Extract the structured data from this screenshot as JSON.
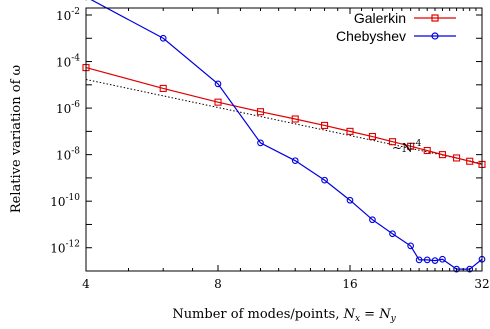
{
  "chart_data": {
    "type": "line",
    "title": "",
    "xlabel": "Number of modes/points, ",
    "xlabel_parts": [
      {
        "text": "Number of modes/points, ",
        "style": "normal"
      },
      {
        "text": "N",
        "style": "italic"
      },
      {
        "text": "x",
        "style": "sub-italic"
      },
      {
        "text": " = ",
        "style": "normal"
      },
      {
        "text": "N",
        "style": "italic"
      },
      {
        "text": "y",
        "style": "sub-italic"
      }
    ],
    "ylabel": "Relative variation of ω",
    "xscale": "log2",
    "yscale": "log10",
    "xlim": [
      4,
      32
    ],
    "ylim": [
      1e-13,
      0.02
    ],
    "xticks": [
      4,
      8,
      16,
      32
    ],
    "xtick_labels": [
      "4",
      "8",
      "16",
      "32"
    ],
    "yticks": [
      1e-12,
      1e-10,
      1e-08,
      1e-06,
      0.0001,
      0.01
    ],
    "ytick_labels": [
      {
        "base": "10",
        "exp": "-12"
      },
      {
        "base": "10",
        "exp": "-10"
      },
      {
        "base": "10",
        "exp": "-8"
      },
      {
        "base": "10",
        "exp": "-6"
      },
      {
        "base": "10",
        "exp": "-4"
      },
      {
        "base": "10",
        "exp": "-2"
      }
    ],
    "grid": false,
    "legend_position": "top-right",
    "series": [
      {
        "name": "Galerkin",
        "color": "#e00000",
        "marker": "square",
        "x": [
          4,
          6,
          8,
          10,
          12,
          14,
          16,
          18,
          20,
          22,
          24,
          26,
          28,
          30,
          32
        ],
        "y": [
          5.5e-05,
          7e-06,
          1.8e-06,
          7e-07,
          3.4e-07,
          1.8e-07,
          1e-07,
          6e-08,
          3.6e-08,
          2.3e-08,
          1.5e-08,
          1e-08,
          7.2e-09,
          5.2e-09,
          3.8e-09
        ]
      },
      {
        "name": "Chebyshev",
        "color": "#0000e0",
        "marker": "circle",
        "x": [
          4,
          6,
          8,
          10,
          12,
          14,
          16,
          18,
          20,
          22,
          23,
          24,
          25,
          26,
          28,
          30,
          32
        ],
        "y": [
          0.06,
          0.001,
          1.1e-05,
          3.2e-08,
          5.5e-09,
          8e-10,
          1.1e-10,
          1.6e-11,
          4e-12,
          1.2e-12,
          3e-13,
          3e-13,
          2.8e-13,
          3.2e-13,
          1.2e-13,
          1.2e-13,
          3.2e-13
        ]
      }
    ],
    "reference_line": {
      "label": "~N",
      "label_exp": "-4",
      "style": "dotted",
      "color": "#000000",
      "x": [
        4,
        32
      ],
      "y": [
        1.7e-05,
        4.15e-09
      ]
    }
  }
}
